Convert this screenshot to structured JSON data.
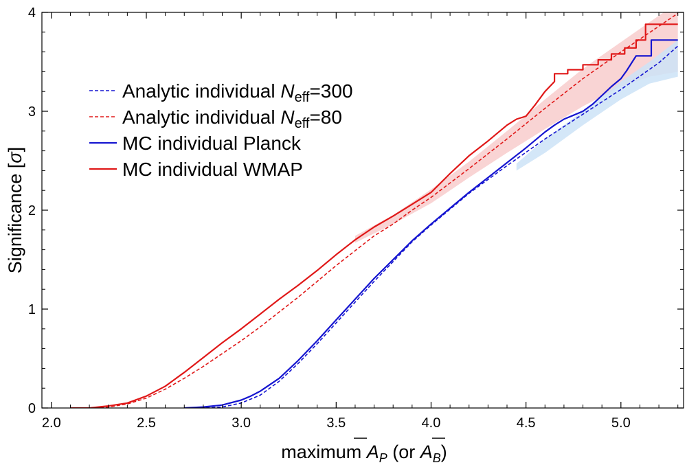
{
  "chart_data": {
    "type": "line",
    "title": "",
    "xlabel": {
      "prefix": "maximum ",
      "var1": "A",
      "sub1": "P",
      "middle": " (or ",
      "var2": "A",
      "sub2": "B",
      "suffix": ")"
    },
    "ylabel": {
      "prefix": "Significance [",
      "var": "σ",
      "suffix": "]"
    },
    "xlim": [
      1.95,
      5.33
    ],
    "ylim": [
      0,
      4
    ],
    "xticks": [
      2.0,
      2.5,
      3.0,
      3.5,
      4.0,
      4.5,
      5.0
    ],
    "xtick_labels": [
      "2.0",
      "2.5",
      "3.0",
      "3.5",
      "4.0",
      "4.5",
      "5.0"
    ],
    "yticks": [
      0,
      1,
      2,
      3,
      4
    ],
    "ytick_labels": [
      "0",
      "1",
      "2",
      "3",
      "4"
    ],
    "grid": false,
    "legend_position": "upper-left",
    "colors": {
      "planck": "#1515d0",
      "wmap": "#e01818",
      "planck_band": "#cde3f7",
      "wmap_band": "#f8cccc"
    },
    "bands": [
      {
        "name": "WMAP uncertainty band",
        "color": "#f8cccc",
        "x": [
          3.6,
          3.8,
          4.0,
          4.2,
          4.4,
          4.6,
          4.8,
          5.0,
          5.15,
          5.3
        ],
        "lower": [
          1.67,
          1.86,
          2.07,
          2.33,
          2.58,
          2.82,
          3.05,
          3.25,
          3.35,
          3.4
        ],
        "upper": [
          1.74,
          1.95,
          2.21,
          2.49,
          2.8,
          3.12,
          3.43,
          3.7,
          3.9,
          4.1
        ]
      },
      {
        "name": "Planck uncertainty band",
        "color": "#cde3f7",
        "x": [
          4.45,
          4.6,
          4.8,
          5.0,
          5.15,
          5.3
        ],
        "lower": [
          2.4,
          2.58,
          2.86,
          3.12,
          3.28,
          3.35
        ],
        "upper": [
          2.47,
          2.72,
          3.0,
          3.3,
          3.5,
          3.72
        ]
      }
    ],
    "series": [
      {
        "name": "Analytic individual N_eff=300",
        "legend": {
          "pre": "Analytic individual ",
          "var": "N",
          "sub": "eff",
          "post": "=300"
        },
        "color": "#1515d0",
        "style": "dashed",
        "x": [
          2.7,
          2.8,
          2.9,
          3.0,
          3.1,
          3.2,
          3.3,
          3.4,
          3.5,
          3.6,
          3.7,
          3.8,
          3.9,
          4.0,
          4.2,
          4.4,
          4.6,
          4.8,
          5.0,
          5.2,
          5.3
        ],
        "y": [
          0.0,
          0.0,
          0.01,
          0.05,
          0.13,
          0.27,
          0.45,
          0.65,
          0.86,
          1.07,
          1.28,
          1.48,
          1.68,
          1.85,
          2.17,
          2.45,
          2.72,
          2.97,
          3.22,
          3.49,
          3.66
        ]
      },
      {
        "name": "Analytic individual N_eff=80",
        "legend": {
          "pre": "Analytic individual ",
          "var": "N",
          "sub": "eff",
          "post": "=80"
        },
        "color": "#e01818",
        "style": "dashed",
        "x": [
          2.2,
          2.3,
          2.4,
          2.5,
          2.6,
          2.7,
          2.8,
          2.9,
          3.0,
          3.1,
          3.2,
          3.3,
          3.4,
          3.5,
          3.6,
          3.7,
          3.8,
          3.9,
          4.0,
          4.2,
          4.4,
          4.6,
          4.8,
          5.0,
          5.2,
          5.3
        ],
        "y": [
          0.0,
          0.01,
          0.04,
          0.1,
          0.19,
          0.3,
          0.42,
          0.55,
          0.68,
          0.82,
          0.97,
          1.12,
          1.28,
          1.44,
          1.59,
          1.74,
          1.86,
          2.0,
          2.13,
          2.42,
          2.72,
          3.03,
          3.33,
          3.6,
          3.86,
          3.99
        ]
      },
      {
        "name": "MC individual Planck",
        "legend": {
          "pre": "MC individual Planck",
          "var": "",
          "sub": "",
          "post": ""
        },
        "color": "#1515d0",
        "style": "solid",
        "x": [
          2.7,
          2.8,
          2.9,
          3.0,
          3.05,
          3.1,
          3.2,
          3.3,
          3.4,
          3.5,
          3.6,
          3.7,
          3.8,
          3.9,
          4.0,
          4.1,
          4.2,
          4.3,
          4.4,
          4.5,
          4.6,
          4.65,
          4.7,
          4.75,
          4.8,
          4.85,
          4.9,
          4.95,
          5.0,
          5.03,
          5.06,
          5.08,
          5.1,
          5.13,
          5.16,
          5.16,
          5.3
        ],
        "y": [
          0.0,
          0.01,
          0.03,
          0.08,
          0.12,
          0.17,
          0.3,
          0.48,
          0.68,
          0.89,
          1.1,
          1.31,
          1.5,
          1.69,
          1.86,
          2.02,
          2.18,
          2.33,
          2.48,
          2.63,
          2.79,
          2.86,
          2.92,
          2.96,
          3.0,
          3.07,
          3.16,
          3.25,
          3.33,
          3.41,
          3.5,
          3.56,
          3.56,
          3.56,
          3.56,
          3.72,
          3.72
        ]
      },
      {
        "name": "MC individual WMAP",
        "legend": {
          "pre": "MC individual WMAP",
          "var": "",
          "sub": "",
          "post": ""
        },
        "color": "#e01818",
        "style": "solid",
        "x": [
          2.1,
          2.2,
          2.3,
          2.4,
          2.5,
          2.6,
          2.7,
          2.8,
          2.9,
          3.0,
          3.1,
          3.2,
          3.3,
          3.4,
          3.5,
          3.6,
          3.7,
          3.8,
          3.9,
          4.0,
          4.1,
          4.2,
          4.3,
          4.4,
          4.45,
          4.5,
          4.55,
          4.6,
          4.65,
          4.65,
          4.72,
          4.72,
          4.8,
          4.8,
          4.88,
          4.88,
          4.95,
          4.95,
          5.02,
          5.02,
          5.08,
          5.08,
          5.13,
          5.13,
          5.3
        ],
        "y": [
          0.0,
          0.0,
          0.02,
          0.05,
          0.12,
          0.22,
          0.36,
          0.51,
          0.66,
          0.8,
          0.95,
          1.1,
          1.24,
          1.39,
          1.55,
          1.7,
          1.83,
          1.94,
          2.06,
          2.18,
          2.37,
          2.55,
          2.7,
          2.86,
          2.92,
          2.95,
          3.07,
          3.2,
          3.3,
          3.38,
          3.38,
          3.42,
          3.42,
          3.47,
          3.47,
          3.52,
          3.52,
          3.58,
          3.58,
          3.64,
          3.64,
          3.72,
          3.72,
          3.88,
          3.88
        ]
      }
    ]
  }
}
